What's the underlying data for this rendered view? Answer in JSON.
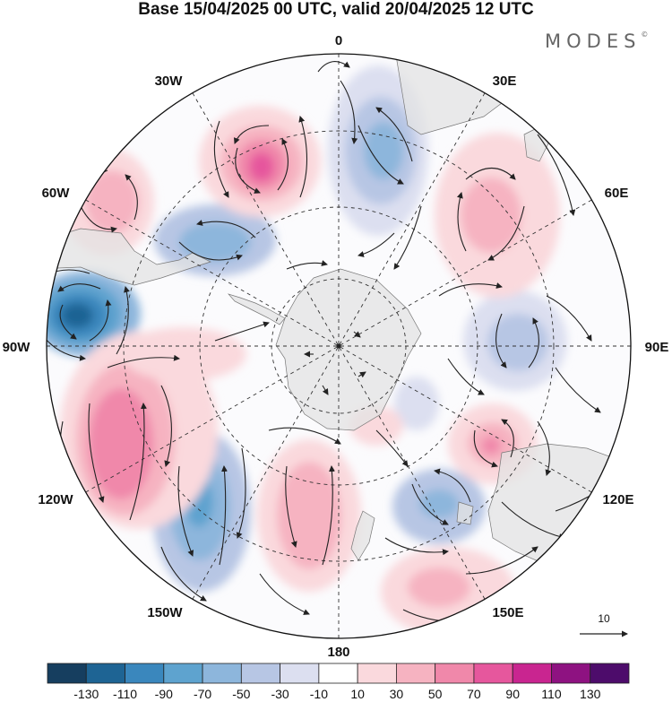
{
  "title": "Base 15/04/2025 00 UTC, valid 20/04/2025 12 UTC",
  "brand": {
    "name": "MODES",
    "mark": "©"
  },
  "longitude_labels": [
    {
      "key": "0",
      "text": "0"
    },
    {
      "key": "30E",
      "text": "30E"
    },
    {
      "key": "60E",
      "text": "60E"
    },
    {
      "key": "90E",
      "text": "90E"
    },
    {
      "key": "120E",
      "text": "120E"
    },
    {
      "key": "150E",
      "text": "150E"
    },
    {
      "key": "180",
      "text": "180"
    },
    {
      "key": "150W",
      "text": "150W"
    },
    {
      "key": "120W",
      "text": "120W"
    },
    {
      "key": "90W",
      "text": "90W"
    },
    {
      "key": "60W",
      "text": "60W"
    },
    {
      "key": "30W",
      "text": "30W"
    }
  ],
  "reference_vector": {
    "label": "10"
  },
  "colorbar": {
    "colors": [
      "#163e5f",
      "#1e6494",
      "#3a87bd",
      "#5ea3cf",
      "#8db6dc",
      "#b7c6e4",
      "#dcdff0",
      "#ffffff",
      "#fad9dd",
      "#f6b3c1",
      "#f088aa",
      "#e6579d",
      "#c92590",
      "#8e1281",
      "#4d0c6b"
    ],
    "tick_labels": [
      "-130",
      "-110",
      "-90",
      "-70",
      "-50",
      "-30",
      "-10",
      "10",
      "30",
      "50",
      "70",
      "90",
      "110",
      "130"
    ]
  },
  "projection": "south-polar-stereographic",
  "land_color": "#e3e3e3"
}
